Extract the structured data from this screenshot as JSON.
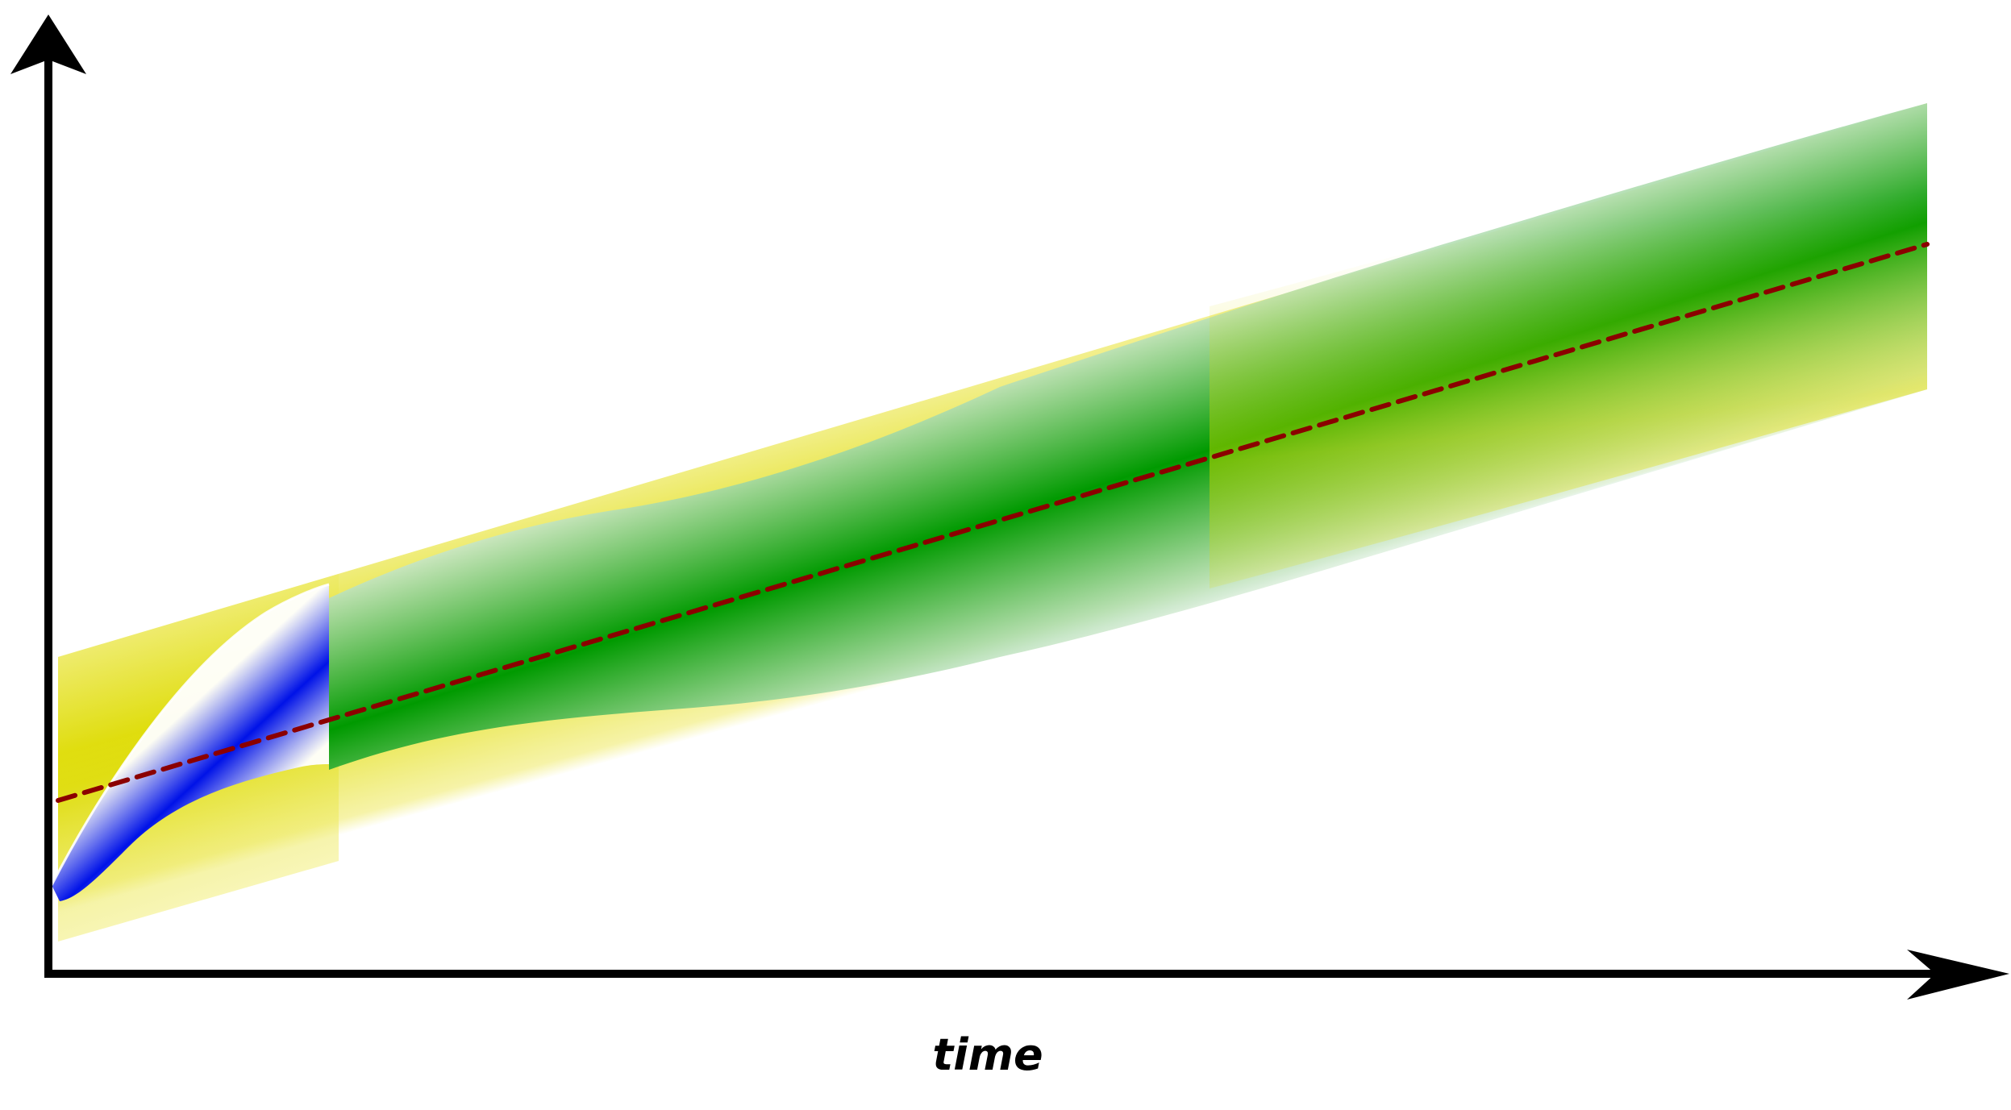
{
  "diagram": {
    "x_axis_label": "time"
  },
  "colors": {
    "axis": "#000000",
    "outer_band": "#e1e000",
    "inner_band": "#009600",
    "initial_band": "#0010e6",
    "trend_line": "#8b0000",
    "background": "#ffffff"
  }
}
